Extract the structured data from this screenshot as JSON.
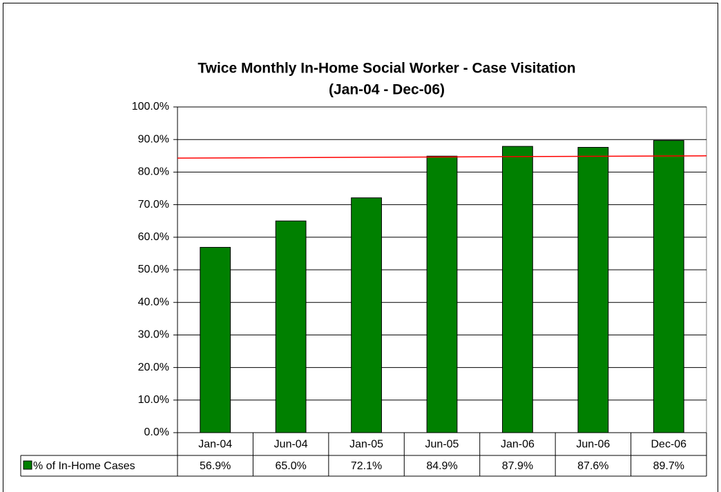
{
  "chart_data": {
    "type": "bar",
    "title": "Twice Monthly In-Home Social Worker - Case Visitation",
    "subtitle": "(Jan-04 - Dec-06)",
    "categories": [
      "Jan-04",
      "Jun-04",
      "Jan-05",
      "Jun-05",
      "Jan-06",
      "Jun-06",
      "Dec-06"
    ],
    "series": [
      {
        "name": "% of In-Home Cases",
        "color": "#008000",
        "values": [
          56.9,
          65.0,
          72.1,
          84.9,
          87.9,
          87.6,
          89.7
        ],
        "value_labels": [
          "56.9%",
          "65.0%",
          "72.1%",
          "84.9%",
          "87.9%",
          "87.6%",
          "89.7%"
        ]
      }
    ],
    "target_line": {
      "color": "#ff0000",
      "start": 84.3,
      "end": 85.0
    },
    "ylim": [
      0,
      100
    ],
    "yticks": [
      {
        "value": 0,
        "label": "0.0%"
      },
      {
        "value": 10,
        "label": "10.0%"
      },
      {
        "value": 20,
        "label": "20.0%"
      },
      {
        "value": 30,
        "label": "30.0%"
      },
      {
        "value": 40,
        "label": "40.0%"
      },
      {
        "value": 50,
        "label": "50.0%"
      },
      {
        "value": 60,
        "label": "60.0%"
      },
      {
        "value": 70,
        "label": "70.0%"
      },
      {
        "value": 80,
        "label": "80.0%"
      },
      {
        "value": 90,
        "label": "90.0%"
      },
      {
        "value": 100,
        "label": "100.0%"
      }
    ],
    "grid": true,
    "data_table": true
  }
}
